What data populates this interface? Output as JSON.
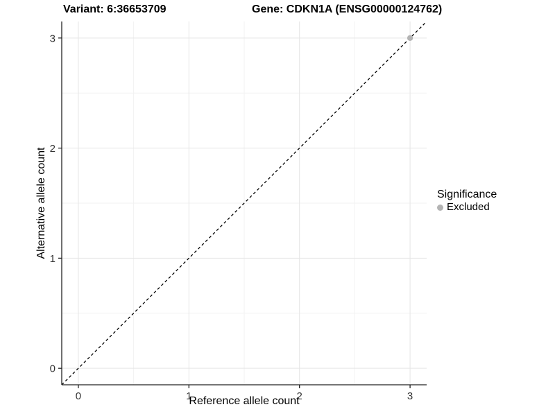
{
  "chart_data": {
    "type": "scatter",
    "title_left": "Variant: 6:36653709",
    "title_right": "Gene: CDKN1A (ENSG00000124762)",
    "xlabel": "Reference allele count",
    "ylabel": "Alternative allele count",
    "xlim": [
      -0.15,
      3.15
    ],
    "ylim": [
      -0.15,
      3.15
    ],
    "x_ticks": [
      0,
      1,
      2,
      3
    ],
    "y_ticks": [
      0,
      1,
      2,
      3
    ],
    "x_minor_ticks": [
      0.5,
      1.5,
      2.5
    ],
    "y_minor_ticks": [
      0.5,
      1.5,
      2.5
    ],
    "grid": "major-and-minor",
    "legend_position": "right",
    "legend_title": "Significance",
    "series": [
      {
        "name": "Excluded",
        "color": "#B4B4B4",
        "points": [
          {
            "x": 3,
            "y": 3
          }
        ]
      }
    ],
    "identity_line": {
      "slope": 1,
      "intercept": 0,
      "style": "dashed",
      "color": "#000000"
    },
    "colors": {
      "background": "#FFFFFF",
      "grid_major": "#E5E5E5",
      "grid_minor": "#F2F2F2",
      "axis": "#222222",
      "tick_text": "#333333",
      "title_text": "#000000",
      "excluded": "#B4B4B4"
    }
  }
}
